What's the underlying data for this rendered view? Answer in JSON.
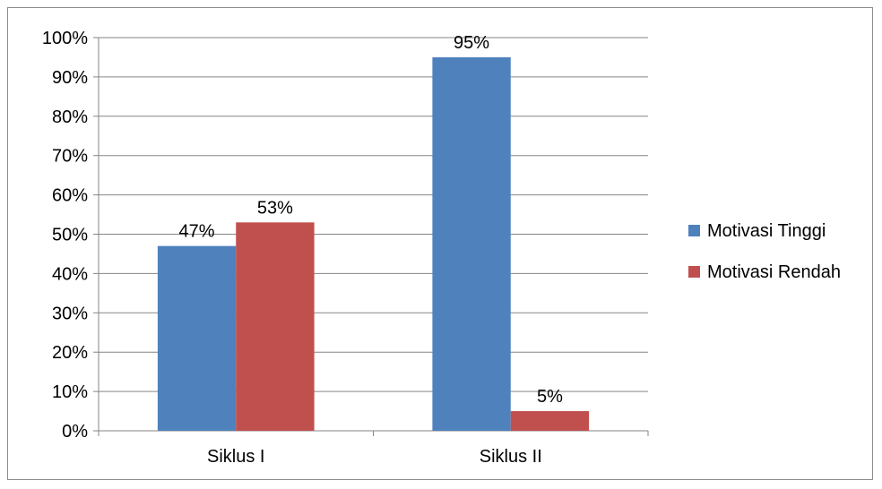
{
  "chart_data": {
    "type": "bar",
    "categories": [
      "Siklus I",
      "Siklus II"
    ],
    "series": [
      {
        "name": "Motivasi Tinggi",
        "values": [
          47,
          95
        ],
        "labels": [
          "47%",
          "95%"
        ],
        "color": "#4F81BD"
      },
      {
        "name": "Motivasi Rendah",
        "values": [
          53,
          5
        ],
        "labels": [
          "53%",
          "5%"
        ],
        "color": "#C0504D"
      }
    ],
    "y_ticks": [
      "0%",
      "10%",
      "20%",
      "30%",
      "40%",
      "50%",
      "60%",
      "70%",
      "80%",
      "90%",
      "100%"
    ],
    "ylim": [
      0,
      100
    ],
    "grid": true,
    "legend_position": "right",
    "title": "",
    "xlabel": "",
    "ylabel": ""
  }
}
